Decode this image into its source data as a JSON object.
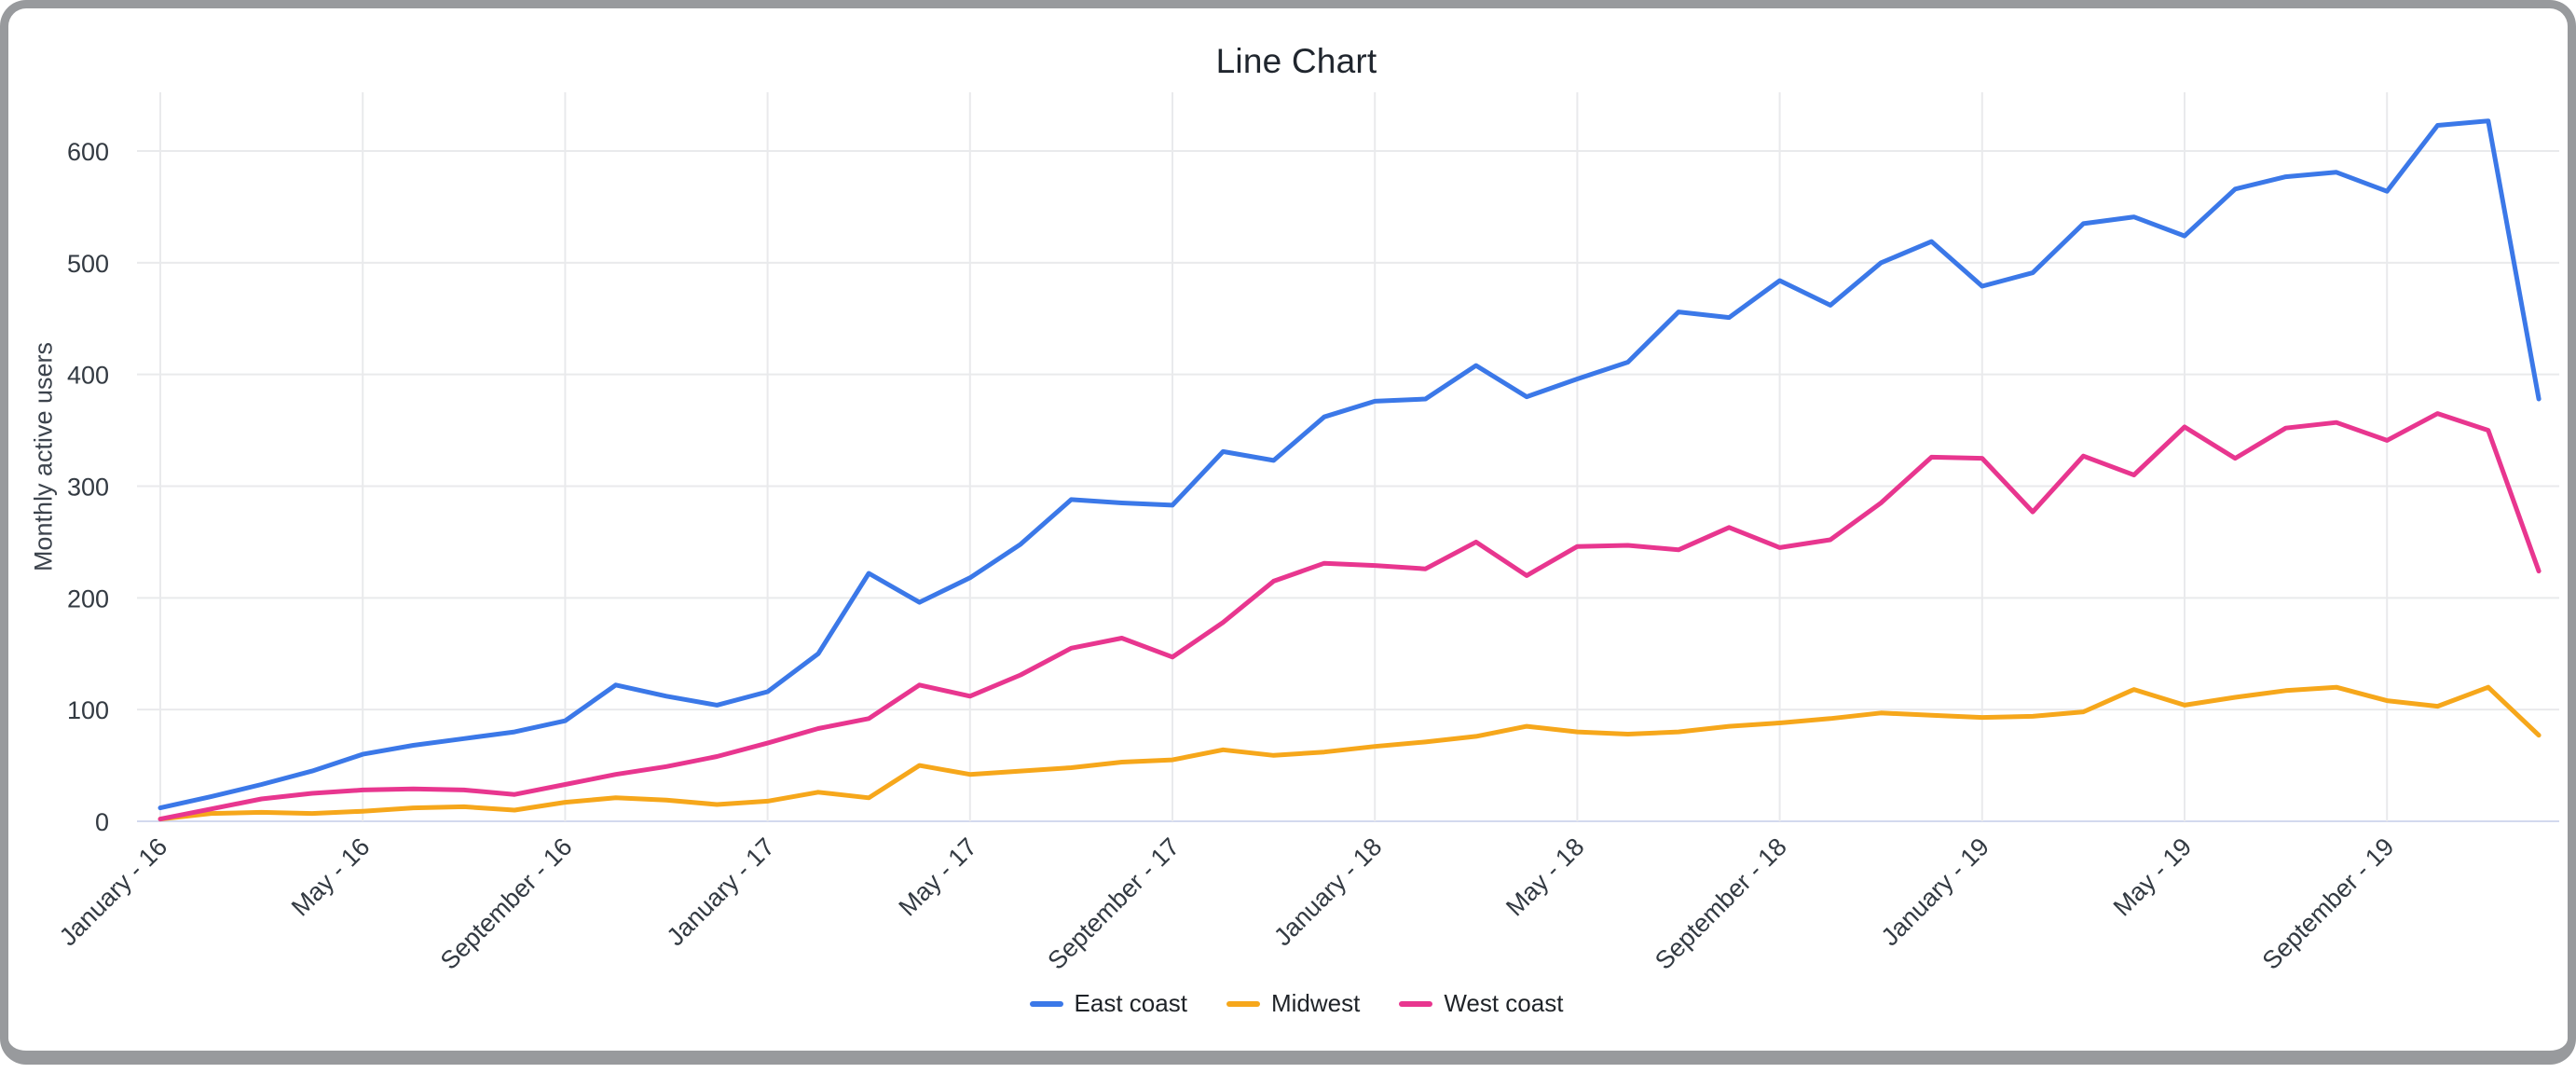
{
  "window": {
    "frame_color": "#989a9d",
    "background": "#ffffff"
  },
  "chart": {
    "title": "Line Chart",
    "y_axis_title": "Monthly active users",
    "legend": [
      {
        "label": "East coast",
        "color": "#3b78e8"
      },
      {
        "label": "Midwest",
        "color": "#f6a71b"
      },
      {
        "label": "West coast",
        "color": "#e8368f"
      }
    ],
    "colors": {
      "gridline": "#e9eaec",
      "baseline": "#d3d9ee",
      "tick_text": "#333a42",
      "title_text": "#20262e"
    }
  },
  "chart_data": {
    "type": "line",
    "title": "Line Chart",
    "xlabel": "",
    "ylabel": "Monthly active users",
    "ylim": [
      0,
      650
    ],
    "y_ticks": [
      0,
      100,
      200,
      300,
      400,
      500,
      600
    ],
    "grid": true,
    "legend_position": "bottom",
    "n_points": 48,
    "x_start": "January - 16",
    "x_end": "December - 19",
    "x_tick_every": 4,
    "x_tick_labels": [
      "January - 16",
      "May - 16",
      "September - 16",
      "January - 17",
      "May - 17",
      "September - 17",
      "January - 18",
      "May - 18",
      "September - 18",
      "January - 19",
      "May - 19",
      "September - 19"
    ],
    "series": [
      {
        "name": "East coast",
        "color": "#3b78e8",
        "values": [
          12,
          22,
          33,
          45,
          60,
          68,
          74,
          80,
          90,
          122,
          112,
          104,
          116,
          150,
          222,
          196,
          218,
          248,
          288,
          285,
          283,
          331,
          323,
          362,
          376,
          378,
          408,
          380,
          396,
          411,
          456,
          451,
          484,
          462,
          500,
          519,
          479,
          491,
          535,
          541,
          524,
          566,
          577,
          581,
          564,
          623,
          627,
          378
        ]
      },
      {
        "name": "Midwest",
        "color": "#f6a71b",
        "values": [
          2,
          7,
          8,
          7,
          9,
          12,
          13,
          10,
          17,
          21,
          19,
          15,
          18,
          26,
          21,
          50,
          42,
          45,
          48,
          53,
          55,
          64,
          59,
          62,
          67,
          71,
          76,
          85,
          80,
          78,
          80,
          85,
          88,
          92,
          97,
          95,
          93,
          94,
          98,
          118,
          104,
          111,
          117,
          120,
          108,
          103,
          120,
          77
        ]
      },
      {
        "name": "West coast",
        "color": "#e8368f",
        "values": [
          2,
          11,
          20,
          25,
          28,
          29,
          28,
          24,
          33,
          42,
          49,
          58,
          70,
          83,
          92,
          122,
          112,
          131,
          155,
          164,
          147,
          178,
          215,
          231,
          229,
          226,
          250,
          220,
          246,
          247,
          243,
          263,
          245,
          252,
          285,
          326,
          325,
          277,
          327,
          310,
          353,
          325,
          352,
          357,
          341,
          365,
          350,
          224
        ]
      }
    ]
  }
}
